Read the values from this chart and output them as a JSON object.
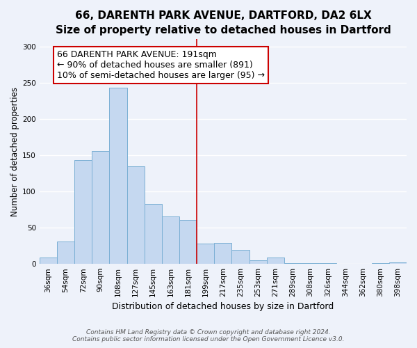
{
  "title": "66, DARENTH PARK AVENUE, DARTFORD, DA2 6LX",
  "subtitle": "Size of property relative to detached houses in Dartford",
  "xlabel": "Distribution of detached houses by size in Dartford",
  "ylabel": "Number of detached properties",
  "bar_labels": [
    "36sqm",
    "54sqm",
    "72sqm",
    "90sqm",
    "108sqm",
    "127sqm",
    "145sqm",
    "163sqm",
    "181sqm",
    "199sqm",
    "217sqm",
    "235sqm",
    "253sqm",
    "271sqm",
    "289sqm",
    "308sqm",
    "326sqm",
    "344sqm",
    "362sqm",
    "380sqm",
    "398sqm"
  ],
  "bar_values": [
    9,
    31,
    143,
    156,
    243,
    135,
    83,
    65,
    61,
    28,
    29,
    19,
    5,
    9,
    1,
    1,
    1,
    0,
    0,
    1,
    2
  ],
  "bar_color": "#c5d8f0",
  "bar_edge_color": "#7aafd4",
  "vline_x": 8.5,
  "vline_color": "#cc0000",
  "annotation_line1": "66 DARENTH PARK AVENUE: 191sqm",
  "annotation_line2": "← 90% of detached houses are smaller (891)",
  "annotation_line3": "10% of semi-detached houses are larger (95) →",
  "annotation_box_color": "#ffffff",
  "annotation_border_color": "#cc0000",
  "ylim": [
    0,
    310
  ],
  "yticks": [
    0,
    50,
    100,
    150,
    200,
    250,
    300
  ],
  "footnote1": "Contains HM Land Registry data © Crown copyright and database right 2024.",
  "footnote2": "Contains public sector information licensed under the Open Government Licence v3.0.",
  "bg_color": "#eef2fa",
  "grid_color": "#ffffff",
  "title_fontsize": 11,
  "xlabel_fontsize": 9,
  "ylabel_fontsize": 8.5,
  "tick_fontsize": 7.5,
  "annotation_fontsize": 9,
  "footnote_fontsize": 6.5
}
